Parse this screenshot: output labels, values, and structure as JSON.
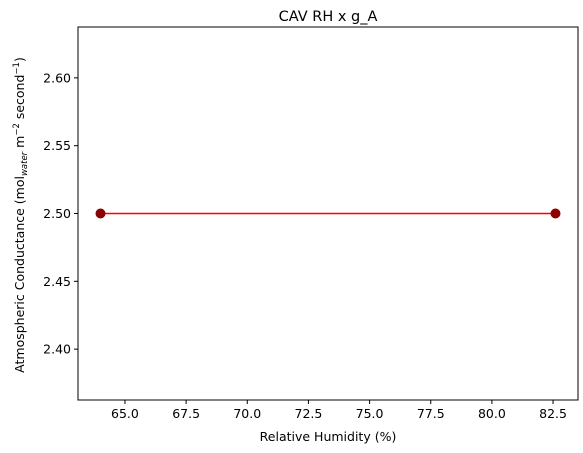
{
  "chart_data": {
    "type": "line",
    "title": "CAV RH x g_A",
    "xlabel": "Relative Humidity (%)",
    "ylabel_parts": {
      "pre": "Atmospheric Conductance (mol",
      "sub": "water",
      "mid1": " m",
      "sup1": "−2",
      "mid2": " second",
      "sup2": "−1",
      "post": ")"
    },
    "xlim": [
      63.08,
      83.52
    ],
    "ylim": [
      2.3625,
      2.6375
    ],
    "xticks": [
      65.0,
      67.5,
      70.0,
      72.5,
      75.0,
      77.5,
      80.0,
      82.5
    ],
    "xtick_labels": [
      "65.0",
      "67.5",
      "70.0",
      "72.5",
      "75.0",
      "77.5",
      "80.0",
      "82.5"
    ],
    "yticks": [
      2.4,
      2.45,
      2.5,
      2.55,
      2.6
    ],
    "ytick_labels": [
      "2.40",
      "2.45",
      "2.50",
      "2.55",
      "2.60"
    ],
    "grid": false,
    "series": [
      {
        "x": [
          64.0,
          82.6
        ],
        "y": [
          2.5,
          2.5
        ],
        "line_color": "#ff0000",
        "marker_color": "#8b0000"
      }
    ]
  }
}
